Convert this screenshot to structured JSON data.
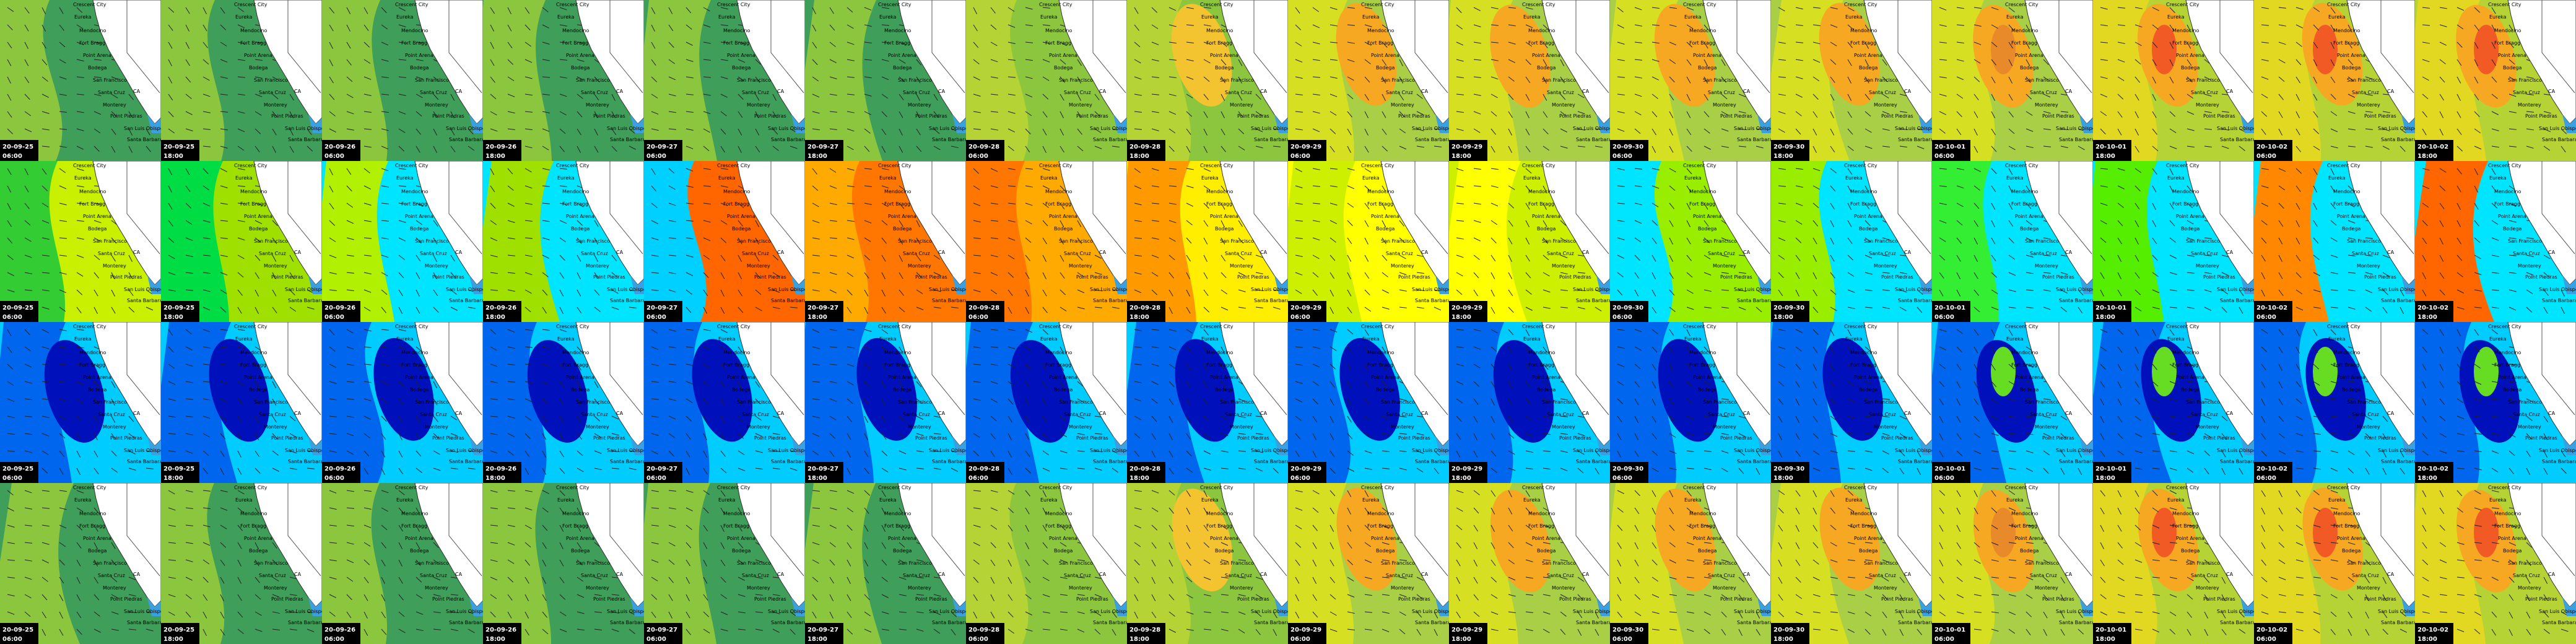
{
  "columns": [
    {
      "date": "20-09-25",
      "time": "06:00"
    },
    {
      "date": "20-09-25",
      "time": "18:00"
    },
    {
      "date": "20-09-26",
      "time": "06:00"
    },
    {
      "date": "20-09-26",
      "time": "18:00"
    },
    {
      "date": "20-09-27",
      "time": "06:00"
    },
    {
      "date": "20-09-27",
      "time": "18:00"
    },
    {
      "date": "20-09-28",
      "time": "06:00"
    },
    {
      "date": "20-09-28",
      "time": "18:00"
    },
    {
      "date": "20-09-29",
      "time": "06:00"
    },
    {
      "date": "20-09-29",
      "time": "18:00"
    },
    {
      "date": "20-09-30",
      "time": "06:00"
    },
    {
      "date": "20-09-30",
      "time": "18:00"
    },
    {
      "date": "20-10-01",
      "time": "06:00"
    },
    {
      "date": "20-10-01",
      "time": "18:00"
    },
    {
      "date": "20-10-02",
      "time": "06:00"
    },
    {
      "date": "20-10-02",
      "time": "18:00"
    }
  ],
  "places": [
    "Crescent City",
    "Eureka",
    "Mendocino",
    "Fort Bragg",
    "Point Arena",
    "Bodega",
    "San Francisco",
    "Santa Cruz",
    "Monterey",
    "Point Piedras",
    "CA",
    "San Luis Obispo",
    "Santa Barbara"
  ]
}
